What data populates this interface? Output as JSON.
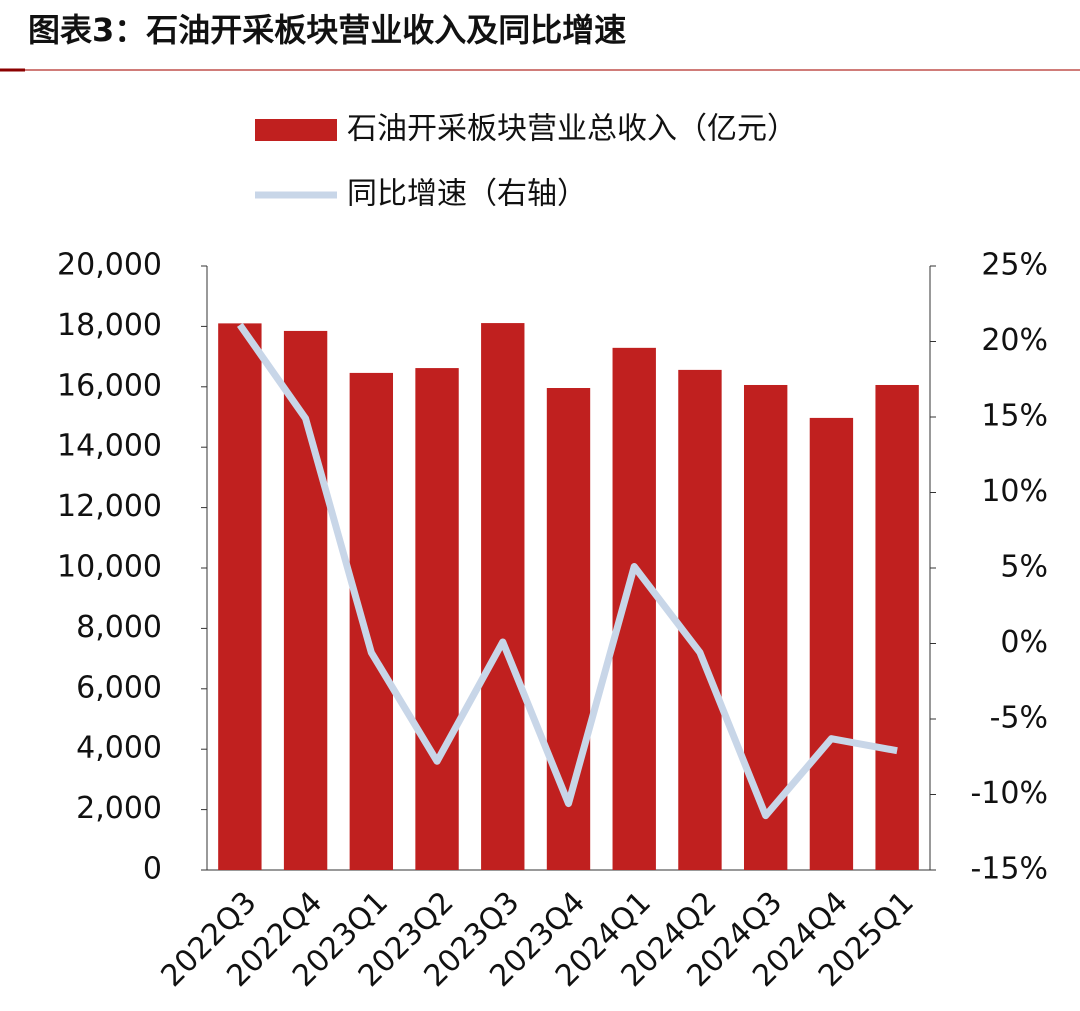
{
  "chart_data": {
    "type": "bar-line",
    "title": "图表3：石油开采板块营业收入及同比增速",
    "categories": [
      "2022Q3",
      "2022Q4",
      "2023Q1",
      "2023Q2",
      "2023Q3",
      "2023Q4",
      "2024Q1",
      "2024Q2",
      "2024Q3",
      "2024Q4",
      "2025Q1"
    ],
    "series": [
      {
        "name": "石油开采板块营业总收入（亿元）",
        "type": "bar",
        "color": "#c0201f",
        "values": [
          18100,
          17850,
          16460,
          16620,
          18110,
          15960,
          17290,
          16560,
          16060,
          14970,
          16060
        ]
      },
      {
        "name": "同比增速（右轴）",
        "type": "line",
        "color": "#c8d6e8",
        "axis": "y2",
        "values": [
          21.1,
          14.9,
          -0.6,
          -7.8,
          0.1,
          -10.6,
          5.1,
          -0.6,
          -11.4,
          -6.3,
          -7.1
        ]
      }
    ],
    "ylim": [
      0,
      20000
    ],
    "yticks": [
      0,
      {
        "value": 2000,
        "label": "2,000"
      },
      {
        "value": 4000,
        "label": "4,000"
      },
      {
        "value": 6000,
        "label": "6,000"
      },
      {
        "value": 8000,
        "label": "8,000"
      },
      {
        "value": 10000,
        "label": "10,000"
      },
      {
        "value": 12000,
        "label": "12,000"
      },
      {
        "value": 14000,
        "label": "14,000"
      },
      {
        "value": 16000,
        "label": "16,000"
      },
      {
        "value": 18000,
        "label": "18,000"
      },
      {
        "value": 20000,
        "label": "20,000"
      }
    ],
    "y2lim": [
      -15,
      25
    ],
    "y2ticks": [
      {
        "value": -15,
        "label": "-15%"
      },
      {
        "value": -10,
        "label": "-10%"
      },
      {
        "value": -5,
        "label": "-5%"
      },
      {
        "value": 0,
        "label": "0%"
      },
      {
        "value": 5,
        "label": "5%"
      },
      {
        "value": 10,
        "label": "10%"
      },
      {
        "value": 15,
        "label": "15%"
      },
      {
        "value": 20,
        "label": "20%"
      },
      {
        "value": 25,
        "label": "25%"
      }
    ],
    "grid": false
  }
}
